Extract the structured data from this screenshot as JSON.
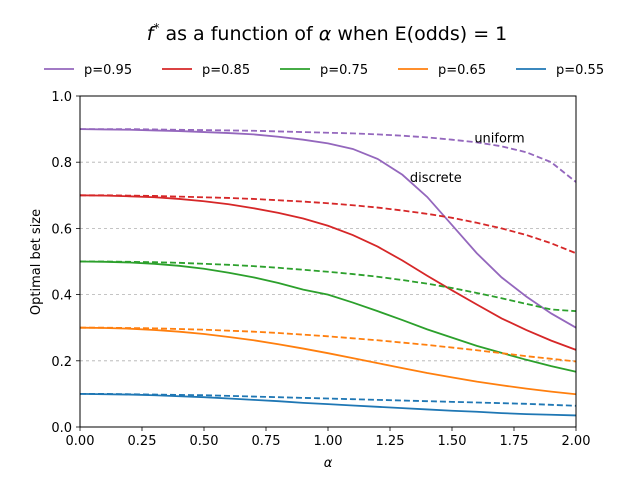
{
  "chart_data": {
    "type": "line",
    "title": {
      "prefix_symbol": "f",
      "prefix_sup": "*",
      "middle": " as a function of ",
      "alpha_symbol": "α",
      "suffix": " when E(odds) = 1"
    },
    "xlabel": "α",
    "ylabel": "Optimal bet size",
    "xlim": [
      0.0,
      2.0
    ],
    "ylim": [
      0.0,
      1.0
    ],
    "xticks": [
      "0.00",
      "0.25",
      "0.50",
      "0.75",
      "1.00",
      "1.25",
      "1.50",
      "1.75",
      "2.00"
    ],
    "xtick_values": [
      0.0,
      0.25,
      0.5,
      0.75,
      1.0,
      1.25,
      1.5,
      1.75,
      2.0
    ],
    "yticks": [
      "0.0",
      "0.2",
      "0.4",
      "0.6",
      "0.8",
      "1.0"
    ],
    "ytick_values": [
      0.0,
      0.2,
      0.4,
      0.6,
      0.8,
      1.0
    ],
    "grid": "horizontal dashed",
    "legend_placement": "top, single row",
    "x": [
      0.0,
      0.1,
      0.2,
      0.3,
      0.4,
      0.5,
      0.6,
      0.7,
      0.8,
      0.9,
      1.0,
      1.1,
      1.2,
      1.3,
      1.4,
      1.5,
      1.6,
      1.7,
      1.8,
      1.9,
      2.0
    ],
    "series": [
      {
        "name": "p=0.95",
        "color": "#9467bd",
        "discrete": [
          0.9,
          0.899,
          0.898,
          0.896,
          0.894,
          0.891,
          0.888,
          0.884,
          0.877,
          0.868,
          0.857,
          0.84,
          0.81,
          0.762,
          0.695,
          0.61,
          0.525,
          0.452,
          0.394,
          0.343,
          0.3
        ],
        "uniform": [
          0.9,
          0.9,
          0.9,
          0.899,
          0.898,
          0.897,
          0.896,
          0.895,
          0.893,
          0.891,
          0.889,
          0.887,
          0.884,
          0.88,
          0.875,
          0.868,
          0.86,
          0.848,
          0.83,
          0.8,
          0.74
        ]
      },
      {
        "name": "p=0.85",
        "color": "#d62728",
        "discrete": [
          0.7,
          0.699,
          0.697,
          0.694,
          0.689,
          0.682,
          0.673,
          0.661,
          0.647,
          0.63,
          0.608,
          0.58,
          0.545,
          0.503,
          0.457,
          0.413,
          0.37,
          0.328,
          0.293,
          0.261,
          0.233
        ],
        "uniform": [
          0.7,
          0.7,
          0.699,
          0.698,
          0.696,
          0.694,
          0.692,
          0.689,
          0.685,
          0.681,
          0.676,
          0.67,
          0.663,
          0.654,
          0.644,
          0.632,
          0.617,
          0.6,
          0.58,
          0.555,
          0.525
        ]
      },
      {
        "name": "p=0.75",
        "color": "#2ca02c",
        "discrete": [
          0.5,
          0.499,
          0.497,
          0.493,
          0.487,
          0.478,
          0.466,
          0.452,
          0.435,
          0.415,
          0.4,
          0.376,
          0.35,
          0.323,
          0.295,
          0.27,
          0.245,
          0.224,
          0.203,
          0.184,
          0.167
        ],
        "uniform": [
          0.5,
          0.5,
          0.499,
          0.498,
          0.496,
          0.493,
          0.49,
          0.486,
          0.481,
          0.475,
          0.469,
          0.462,
          0.454,
          0.444,
          0.433,
          0.42,
          0.405,
          0.389,
          0.372,
          0.355,
          0.35
        ]
      },
      {
        "name": "p=0.65",
        "color": "#ff7f0e",
        "discrete": [
          0.3,
          0.299,
          0.297,
          0.293,
          0.288,
          0.281,
          0.272,
          0.262,
          0.25,
          0.237,
          0.223,
          0.208,
          0.193,
          0.178,
          0.163,
          0.15,
          0.137,
          0.126,
          0.116,
          0.107,
          0.099
        ],
        "uniform": [
          0.3,
          0.3,
          0.299,
          0.298,
          0.296,
          0.294,
          0.291,
          0.288,
          0.284,
          0.279,
          0.274,
          0.268,
          0.262,
          0.255,
          0.248,
          0.24,
          0.232,
          0.223,
          0.214,
          0.206,
          0.198
        ]
      },
      {
        "name": "p=0.55",
        "color": "#1f77b4",
        "discrete": [
          0.1,
          0.099,
          0.098,
          0.096,
          0.093,
          0.09,
          0.086,
          0.082,
          0.078,
          0.073,
          0.069,
          0.065,
          0.061,
          0.057,
          0.053,
          0.049,
          0.046,
          0.042,
          0.039,
          0.037,
          0.035
        ],
        "uniform": [
          0.1,
          0.1,
          0.099,
          0.098,
          0.097,
          0.096,
          0.094,
          0.092,
          0.09,
          0.088,
          0.086,
          0.084,
          0.082,
          0.08,
          0.078,
          0.076,
          0.074,
          0.072,
          0.07,
          0.067,
          0.064
        ]
      }
    ],
    "annotations": [
      {
        "text": "uniform",
        "x": 1.59,
        "y": 0.875
      },
      {
        "text": "discrete",
        "x": 1.33,
        "y": 0.755
      }
    ]
  }
}
